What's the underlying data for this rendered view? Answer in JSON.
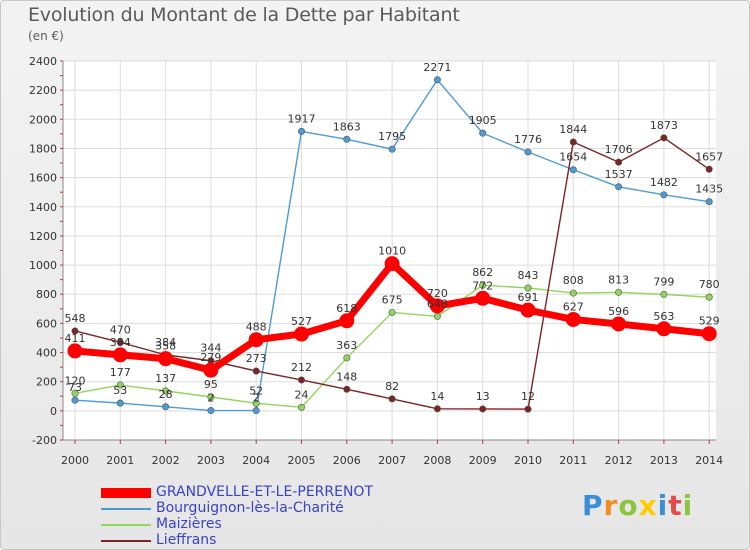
{
  "title": "Evolution du Montant de la Dette par Habitant",
  "unit": "(en €)",
  "logo": {
    "text": "Proxiti",
    "colors": [
      "#3b8dd6",
      "#f28c1e",
      "#8cc63f",
      "#ffcc00",
      "#3b8dd6",
      "#e24c4c",
      "#8cc63f"
    ]
  },
  "chart_data": {
    "type": "line",
    "title": "Evolution du Montant de la Dette par Habitant",
    "ylabel": "(en €)",
    "xlabel": "",
    "ylim": [
      -200,
      2400
    ],
    "yticks": [
      -200,
      0,
      200,
      400,
      600,
      800,
      1000,
      1200,
      1400,
      1600,
      1800,
      2000,
      2200,
      2400
    ],
    "grid": true,
    "x": [
      "2000",
      "2001",
      "2002",
      "2003",
      "2004",
      "2005",
      "2006",
      "2007",
      "2008",
      "2009",
      "2010",
      "2011",
      "2012",
      "2013",
      "2014"
    ],
    "series": [
      {
        "name": "GRANDVELLE-ET-LE-PERRENOT",
        "color": "#ff0000",
        "values": [
          411,
          384,
          358,
          279,
          488,
          527,
          618,
          1010,
          720,
          772,
          691,
          627,
          596,
          563,
          529
        ]
      },
      {
        "name": "Bourguignon-lès-la-Charité",
        "color": "#4d9bd4",
        "values": [
          73,
          53,
          28,
          2,
          2,
          1917,
          1863,
          1795,
          2271,
          1905,
          1776,
          1654,
          1537,
          1482,
          1435
        ]
      },
      {
        "name": "Maizières",
        "color": "#90d65c",
        "values": [
          120,
          177,
          137,
          95,
          52,
          24,
          363,
          675,
          648,
          862,
          843,
          808,
          813,
          799,
          780
        ]
      },
      {
        "name": "Lieffrans",
        "color": "#7a2424",
        "values": [
          548,
          470,
          384,
          344,
          273,
          212,
          148,
          82,
          14,
          13,
          12,
          1844,
          1706,
          1873,
          1657
        ]
      }
    ],
    "data_labels": [
      [
        "411",
        "384",
        "358",
        "279",
        "488",
        "527",
        "618",
        "1010",
        "720",
        "772",
        "691",
        "627",
        "596",
        "563",
        "529"
      ],
      [
        "73",
        "53",
        "28",
        "2",
        "2",
        "1917",
        "1863",
        "1795",
        "2271",
        "1905",
        "1776",
        "1654",
        "1537",
        "1482",
        "1435"
      ],
      [
        "120",
        "177",
        "137",
        "95",
        "52",
        "24",
        "363",
        "675",
        "648",
        "862",
        "843",
        "808",
        "813",
        "799",
        "780"
      ],
      [
        "548",
        "470",
        "384",
        "344",
        "273",
        "212",
        "148",
        "82",
        "14",
        "13",
        "12",
        "1844",
        "1706",
        "1873",
        "1657"
      ]
    ],
    "legend_position": "bottom-left"
  }
}
